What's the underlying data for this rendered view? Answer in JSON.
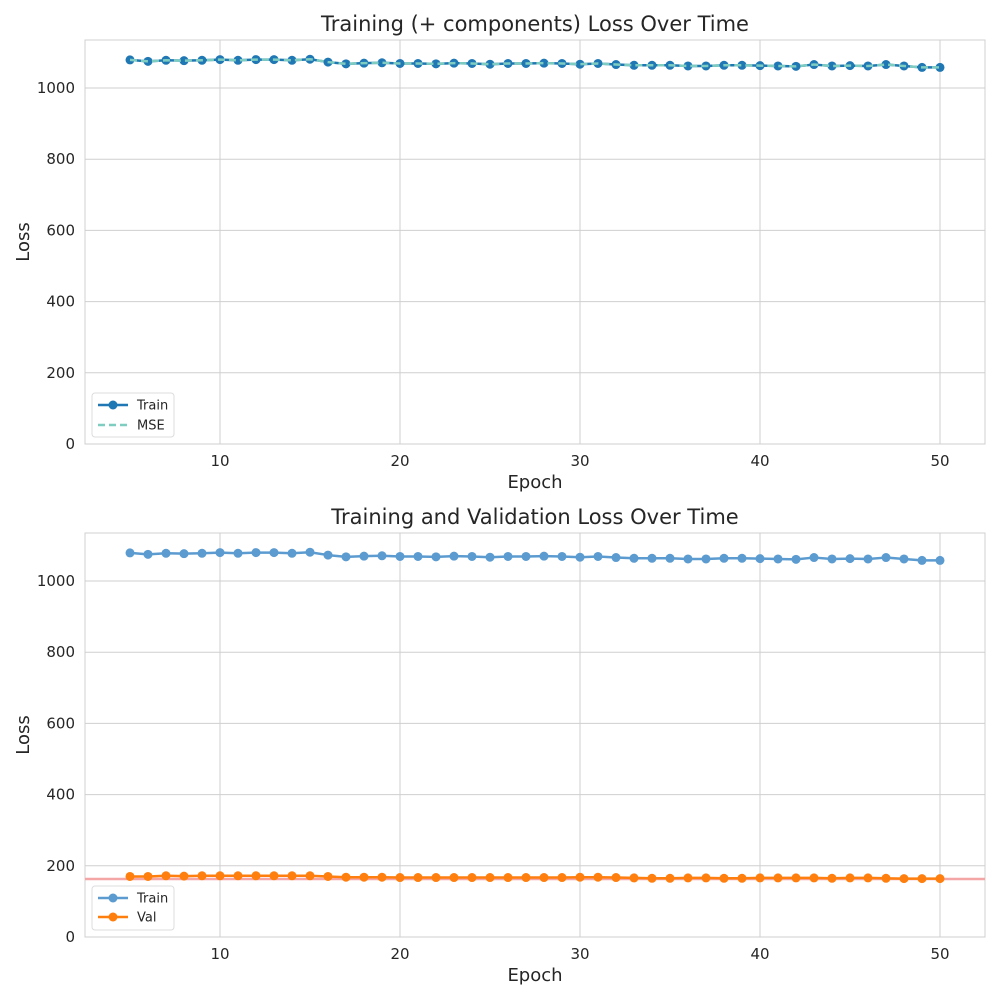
{
  "chart_data": [
    {
      "type": "line",
      "title": "Training (+ components) Loss Over Time",
      "xlabel": "Epoch",
      "ylabel": "Loss",
      "xlim": [
        2.5,
        52.5
      ],
      "ylim": [
        0,
        1135
      ],
      "xticks": [
        10,
        20,
        30,
        40,
        50
      ],
      "yticks": [
        0,
        200,
        400,
        600,
        800,
        1000
      ],
      "grid": true,
      "legend_position": "lower-left",
      "x": [
        5,
        6,
        7,
        8,
        9,
        10,
        11,
        12,
        13,
        14,
        15,
        16,
        17,
        18,
        19,
        20,
        21,
        22,
        23,
        24,
        25,
        26,
        27,
        28,
        29,
        30,
        31,
        32,
        33,
        34,
        35,
        36,
        37,
        38,
        39,
        40,
        41,
        42,
        43,
        44,
        45,
        46,
        47,
        48,
        49,
        50
      ],
      "series": [
        {
          "name": "Train",
          "color": "#1f77b4",
          "style": "solid-marker",
          "values": [
            1079,
            1075,
            1078,
            1077,
            1078,
            1080,
            1078,
            1080,
            1080,
            1078,
            1081,
            1073,
            1068,
            1070,
            1071,
            1069,
            1069,
            1068,
            1070,
            1069,
            1067,
            1069,
            1069,
            1070,
            1069,
            1067,
            1069,
            1066,
            1064,
            1064,
            1064,
            1062,
            1062,
            1064,
            1064,
            1063,
            1062,
            1061,
            1066,
            1062,
            1063,
            1062,
            1066,
            1062,
            1058,
            1058
          ]
        },
        {
          "name": "MSE",
          "color": "#7fcdc1",
          "style": "dashed",
          "values": [
            1079,
            1075,
            1078,
            1077,
            1078,
            1080,
            1078,
            1080,
            1080,
            1078,
            1081,
            1073,
            1068,
            1070,
            1071,
            1069,
            1069,
            1068,
            1070,
            1069,
            1067,
            1069,
            1069,
            1070,
            1069,
            1067,
            1069,
            1066,
            1064,
            1064,
            1064,
            1062,
            1062,
            1064,
            1064,
            1063,
            1062,
            1061,
            1066,
            1062,
            1063,
            1062,
            1066,
            1062,
            1058,
            1058
          ]
        }
      ]
    },
    {
      "type": "line",
      "title": "Training and Validation Loss Over Time",
      "xlabel": "Epoch",
      "ylabel": "Loss",
      "xlim": [
        2.5,
        52.5
      ],
      "ylim": [
        0,
        1135
      ],
      "xticks": [
        10,
        20,
        30,
        40,
        50
      ],
      "yticks": [
        0,
        200,
        400,
        600,
        800,
        1000
      ],
      "grid": true,
      "legend_position": "lower-left",
      "hline": {
        "y": 163,
        "color": "#f4a6a6"
      },
      "x": [
        5,
        6,
        7,
        8,
        9,
        10,
        11,
        12,
        13,
        14,
        15,
        16,
        17,
        18,
        19,
        20,
        21,
        22,
        23,
        24,
        25,
        26,
        27,
        28,
        29,
        30,
        31,
        32,
        33,
        34,
        35,
        36,
        37,
        38,
        39,
        40,
        41,
        42,
        43,
        44,
        45,
        46,
        47,
        48,
        49,
        50
      ],
      "series": [
        {
          "name": "Train",
          "color": "#5b9bd0",
          "style": "solid-marker",
          "values": [
            1079,
            1075,
            1078,
            1077,
            1078,
            1080,
            1078,
            1080,
            1080,
            1078,
            1081,
            1073,
            1068,
            1070,
            1071,
            1069,
            1069,
            1068,
            1070,
            1069,
            1067,
            1069,
            1069,
            1070,
            1069,
            1067,
            1069,
            1066,
            1064,
            1064,
            1064,
            1062,
            1062,
            1064,
            1064,
            1063,
            1062,
            1061,
            1066,
            1062,
            1063,
            1062,
            1066,
            1062,
            1058,
            1058
          ]
        },
        {
          "name": "Val",
          "color": "#ff7f0e",
          "style": "solid-marker",
          "values": [
            170,
            170,
            172,
            171,
            172,
            172,
            172,
            172,
            172,
            172,
            172,
            170,
            168,
            168,
            168,
            167,
            167,
            167,
            167,
            167,
            167,
            167,
            167,
            167,
            167,
            168,
            168,
            167,
            166,
            165,
            165,
            166,
            166,
            165,
            165,
            166,
            166,
            166,
            166,
            165,
            166,
            166,
            165,
            164,
            164,
            164
          ]
        }
      ]
    }
  ]
}
